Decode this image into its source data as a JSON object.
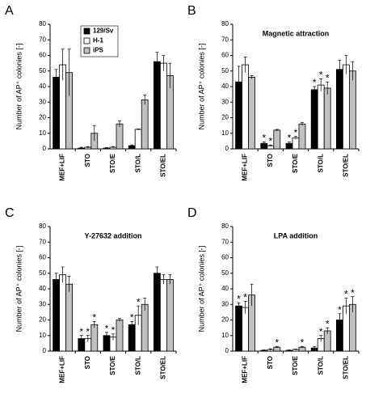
{
  "chart_data": [
    {
      "type": "bar",
      "label": "A",
      "y_label": "Number of AP⁺ colonies [-]",
      "legend": true,
      "categories": [
        "MEF+LIF",
        "STO",
        "STO/E",
        "STO/L",
        "STO/EL"
      ],
      "ylim": [
        0,
        80
      ],
      "yticks": [
        0,
        10,
        20,
        30,
        40,
        50,
        60,
        70,
        80
      ],
      "series": [
        {
          "name": "129/Sv",
          "color": "#000000",
          "values": [
            46,
            0.5,
            0.5,
            2,
            56
          ],
          "errors": [
            5,
            0.5,
            0.3,
            0.5,
            6
          ]
        },
        {
          "name": "H-1",
          "color": "#ffffff",
          "values": [
            54,
            1,
            1,
            12.5,
            55
          ],
          "errors": [
            10,
            0.5,
            0.5,
            0.3,
            5
          ]
        },
        {
          "name": "iPS",
          "color": "#c0c0c0",
          "values": [
            49,
            10,
            16,
            31.5,
            47
          ],
          "errors": [
            15,
            5,
            2,
            3,
            8
          ]
        }
      ]
    },
    {
      "type": "bar",
      "label": "B",
      "title": "Magnetic attraction",
      "y_label": "Number of AP⁺ colonies [-]",
      "significance_mark": "*",
      "categories": [
        "MEF+LIF",
        "STO",
        "STO/E",
        "STO/L",
        "STO/EL"
      ],
      "ylim": [
        0,
        80
      ],
      "yticks": [
        0,
        10,
        20,
        30,
        40,
        50,
        60,
        70,
        80
      ],
      "series": [
        {
          "name": "129/Sv",
          "color": "#000000",
          "values": [
            43,
            3.5,
            3.5,
            38,
            51
          ],
          "errors": [
            10,
            1,
            1,
            2,
            6
          ],
          "significant": [
            false,
            true,
            true,
            true,
            false
          ]
        },
        {
          "name": "H-1",
          "color": "#ffffff",
          "values": [
            54,
            2,
            7,
            41,
            54
          ],
          "errors": [
            5,
            0.5,
            1,
            4,
            6
          ],
          "significant": [
            false,
            true,
            true,
            true,
            false
          ]
        },
        {
          "name": "iPS",
          "color": "#c0c0c0",
          "values": [
            46,
            12,
            16,
            39,
            50
          ],
          "errors": [
            1,
            0.5,
            1,
            4,
            6
          ],
          "significant": [
            false,
            false,
            false,
            true,
            false
          ]
        }
      ]
    },
    {
      "type": "bar",
      "label": "C",
      "title": "Y-27632 addition",
      "y_label": "Number of AP⁺ colonies [-]",
      "significance_mark": "*",
      "categories": [
        "MEF+LIF",
        "STO",
        "STO/E",
        "STO/L",
        "STO/EL"
      ],
      "ylim": [
        0,
        80
      ],
      "yticks": [
        0,
        10,
        20,
        30,
        40,
        50,
        60,
        70,
        80
      ],
      "series": [
        {
          "name": "129/Sv",
          "color": "#000000",
          "values": [
            46,
            8,
            10,
            17,
            50
          ],
          "errors": [
            4,
            2,
            2,
            2,
            4
          ],
          "significant": [
            false,
            true,
            true,
            true,
            false
          ]
        },
        {
          "name": "H-1",
          "color": "#ffffff",
          "values": [
            49,
            8,
            9,
            23,
            46
          ],
          "errors": [
            5,
            2,
            2,
            6,
            3
          ],
          "significant": [
            false,
            true,
            true,
            true,
            false
          ]
        },
        {
          "name": "iPS",
          "color": "#c0c0c0",
          "values": [
            43,
            17,
            20,
            30,
            46
          ],
          "errors": [
            5,
            2,
            1,
            4,
            3
          ],
          "significant": [
            false,
            true,
            false,
            false,
            false
          ]
        }
      ]
    },
    {
      "type": "bar",
      "label": "D",
      "title": "LPA addition",
      "y_label": "Number of AP⁺ colonies [-]",
      "significance_mark": "*",
      "categories": [
        "MEF+LIF",
        "STO",
        "STO/E",
        "STO/L",
        "STO/EL"
      ],
      "ylim": [
        0,
        80
      ],
      "yticks": [
        0,
        10,
        20,
        30,
        40,
        50,
        60,
        70,
        80
      ],
      "series": [
        {
          "name": "129/Sv",
          "color": "#000000",
          "values": [
            29,
            0.5,
            0.5,
            2,
            20
          ],
          "errors": [
            2,
            0.3,
            0.3,
            1,
            4
          ],
          "significant": [
            true,
            false,
            false,
            false,
            true
          ]
        },
        {
          "name": "H-1",
          "color": "#ffffff",
          "values": [
            28,
            1,
            1,
            8,
            29
          ],
          "errors": [
            4,
            0.5,
            0.3,
            2,
            5
          ],
          "significant": [
            true,
            false,
            false,
            true,
            true
          ]
        },
        {
          "name": "iPS",
          "color": "#c0c0c0",
          "values": [
            36,
            2.5,
            2.5,
            13,
            30
          ],
          "errors": [
            7,
            0.5,
            0.5,
            2,
            5
          ],
          "significant": [
            false,
            true,
            true,
            true,
            true
          ]
        }
      ]
    }
  ]
}
